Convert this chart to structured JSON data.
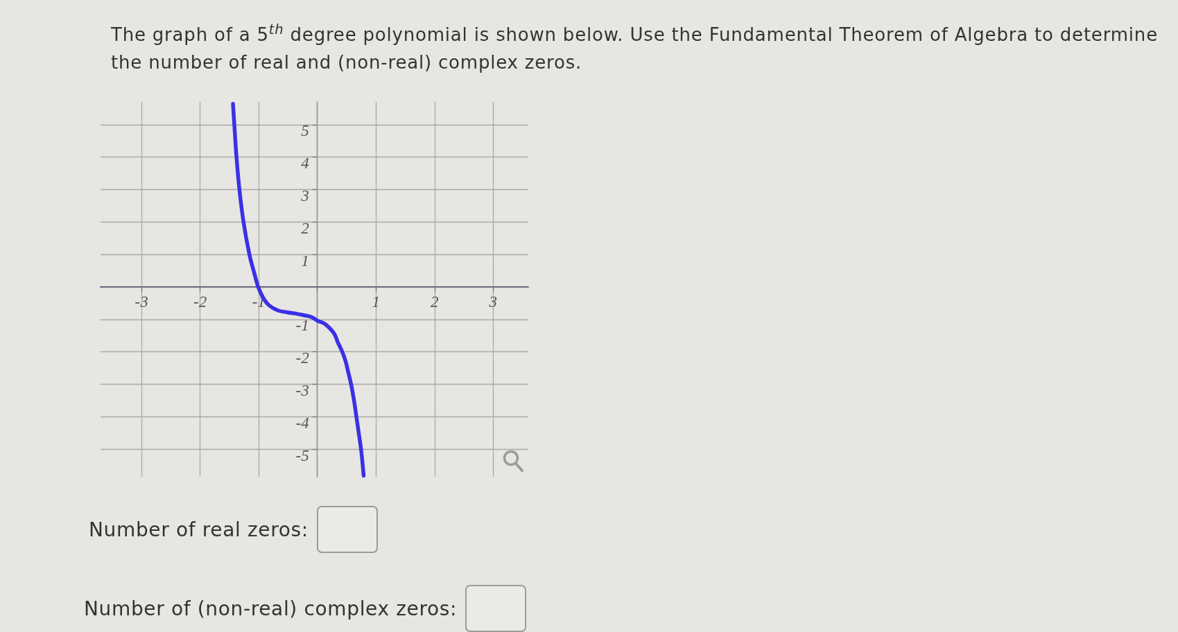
{
  "chart_data": {
    "type": "line",
    "title": "The graph of a 5$^{th}$ degree polynomial is shown below. Use the Fundamental Theorem of Algebra to determine the number of real and (non-real) complex zeros.",
    "x": [
      -1.44,
      -1.41,
      -1.38,
      -1.33,
      -1.26,
      -1.16,
      -1.08,
      -1.01,
      -0.92,
      -0.83,
      -0.68,
      -0.53,
      -0.35,
      -0.24,
      -0.1,
      0,
      0.11,
      0.21,
      0.29,
      0.35,
      0.42,
      0.48,
      0.53,
      0.58,
      0.63,
      0.67,
      0.71,
      0.75,
      0.79
    ],
    "series": [
      {
        "color": "#3b30e6",
        "values": [
          5.64,
          4.8,
          4.0,
          3.0,
          2.0,
          1.0,
          0.45,
          0.0,
          -0.35,
          -0.56,
          -0.72,
          -0.78,
          -0.83,
          -0.87,
          -0.93,
          -1.04,
          -1.12,
          -1.27,
          -1.45,
          -1.71,
          -1.98,
          -2.28,
          -2.65,
          -3.04,
          -3.55,
          -4.05,
          -4.55,
          -5.07,
          -5.82
        ]
      }
    ],
    "xlim": [
      -3.7,
      3.6
    ],
    "ylim": [
      -5.85,
      5.7
    ],
    "xticks": [
      -3,
      -2,
      -1,
      {
        "value": 0,
        "label": null
      },
      1,
      2,
      3
    ],
    "yticks": [
      -5,
      -4,
      -3,
      -2,
      -1,
      {
        "value": 0,
        "label": null
      },
      1,
      2,
      3,
      4,
      5
    ],
    "grid": true,
    "marker": "none",
    "line_style": "solid",
    "annotations": [
      "Number of real zeros:",
      "Number of (non-real) complex zeros:"
    ]
  }
}
